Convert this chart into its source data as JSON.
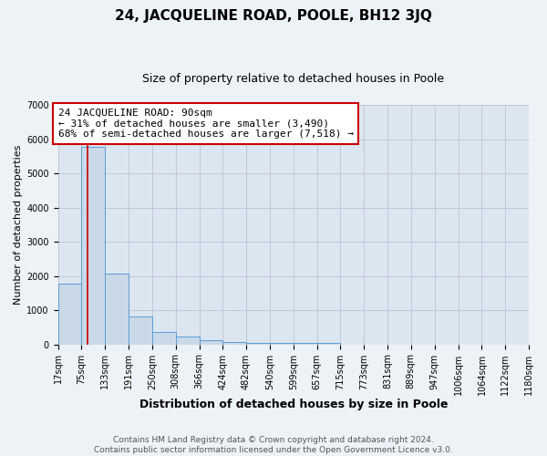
{
  "title": "24, JACQUELINE ROAD, POOLE, BH12 3JQ",
  "subtitle": "Size of property relative to detached houses in Poole",
  "xlabel": "Distribution of detached houses by size in Poole",
  "ylabel": "Number of detached properties",
  "bar_color": "#c9d9e8",
  "bar_edge_color": "#5b9bd5",
  "grid_color": "#c0c8d8",
  "bg_color": "#dce6f0",
  "fig_bg_color": "#edf2f7",
  "vline_color": "#cc0000",
  "vline_x": 90,
  "annotation_line1": "24 JACQUELINE ROAD: 90sqm",
  "annotation_line2": "← 31% of detached houses are smaller (3,490)",
  "annotation_line3": "68% of semi-detached houses are larger (7,518) →",
  "bin_edges": [
    17,
    75,
    133,
    191,
    250,
    308,
    366,
    424,
    482,
    540,
    599,
    657,
    715,
    773,
    831,
    889,
    947,
    1006,
    1064,
    1122,
    1180
  ],
  "bin_counts": [
    1780,
    5780,
    2060,
    820,
    360,
    240,
    110,
    70,
    30,
    30,
    30,
    30,
    0,
    0,
    0,
    0,
    0,
    0,
    0,
    0
  ],
  "ylim": [
    0,
    7000
  ],
  "yticks": [
    0,
    1000,
    2000,
    3000,
    4000,
    5000,
    6000,
    7000
  ],
  "tick_labels": [
    "17sqm",
    "75sqm",
    "133sqm",
    "191sqm",
    "250sqm",
    "308sqm",
    "366sqm",
    "424sqm",
    "482sqm",
    "540sqm",
    "599sqm",
    "657sqm",
    "715sqm",
    "773sqm",
    "831sqm",
    "889sqm",
    "947sqm",
    "1006sqm",
    "1064sqm",
    "1122sqm",
    "1180sqm"
  ],
  "footer_line1": "Contains HM Land Registry data © Crown copyright and database right 2024.",
  "footer_line2": "Contains public sector information licensed under the Open Government Licence v3.0.",
  "title_fontsize": 11,
  "subtitle_fontsize": 9,
  "xlabel_fontsize": 9,
  "ylabel_fontsize": 8,
  "tick_fontsize": 7,
  "annotation_fontsize": 8,
  "footer_fontsize": 6.5
}
